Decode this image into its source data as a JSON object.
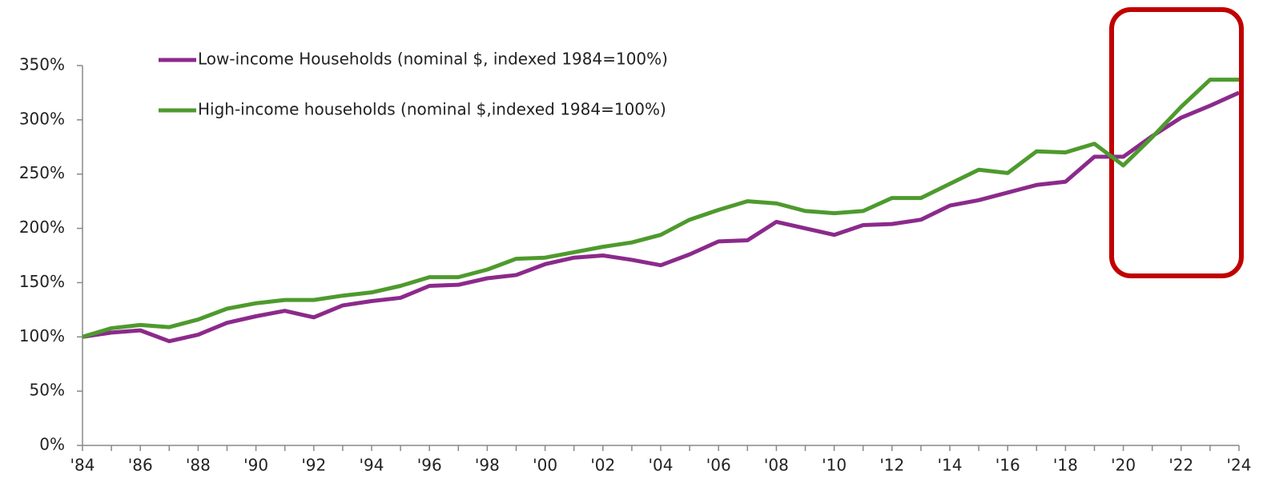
{
  "chart_data": {
    "type": "line",
    "categories": [
      "'84",
      null,
      "'86",
      null,
      "'88",
      null,
      "'90",
      null,
      "'92",
      null,
      "'94",
      null,
      "'96",
      null,
      "'98",
      null,
      "'00",
      null,
      "'02",
      null,
      "'04",
      null,
      "'06",
      null,
      "'08",
      null,
      "'10",
      null,
      "'12",
      null,
      "'14",
      null,
      "'16",
      null,
      "'18",
      null,
      "'20",
      null,
      "'22",
      null,
      "'24"
    ],
    "series": [
      {
        "name": "Low-income Households (nominal $, indexed 1984=100%)",
        "color": "#8b2a8b",
        "values": [
          100,
          104,
          106,
          96,
          102,
          113,
          119,
          124,
          118,
          129,
          133,
          136,
          147,
          148,
          154,
          157,
          167,
          173,
          175,
          171,
          166,
          176,
          188,
          189,
          206,
          200,
          194,
          203,
          204,
          208,
          221,
          226,
          233,
          240,
          243,
          266,
          266,
          285,
          302,
          313,
          325
        ]
      },
      {
        "name": "High-income households (nominal $,indexed 1984=100%)",
        "color": "#4e9a2e",
        "values": [
          100,
          108,
          111,
          109,
          116,
          126,
          131,
          134,
          134,
          138,
          141,
          147,
          155,
          155,
          162,
          172,
          173,
          178,
          183,
          187,
          194,
          208,
          217,
          225,
          223,
          216,
          214,
          216,
          228,
          228,
          241,
          254,
          251,
          271,
          270,
          278,
          258,
          284,
          312,
          337,
          337
        ]
      }
    ],
    "ylim": [
      0,
      350
    ],
    "yticks": [
      {
        "value": 0,
        "label": "0%"
      },
      {
        "value": 50,
        "label": "50%"
      },
      {
        "value": 100,
        "label": "100%"
      },
      {
        "value": 150,
        "label": "150%"
      },
      {
        "value": 200,
        "label": "200%"
      },
      {
        "value": 250,
        "label": "250%"
      },
      {
        "value": 300,
        "label": "300%"
      },
      {
        "value": 350,
        "label": "350%"
      }
    ],
    "grid": false,
    "legend": "top-left"
  }
}
